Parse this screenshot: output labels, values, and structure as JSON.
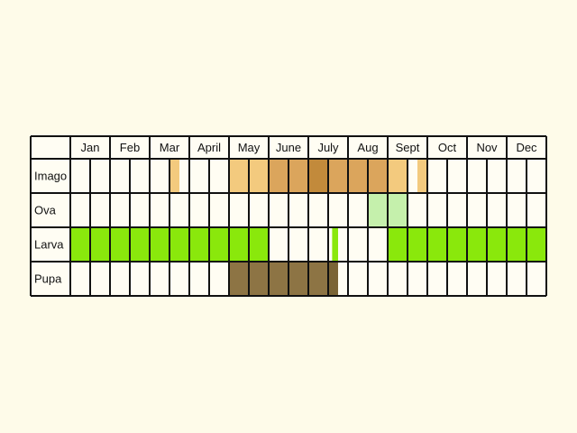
{
  "months": [
    "Jan",
    "Feb",
    "Mar",
    "April",
    "May",
    "June",
    "July",
    "Aug",
    "Sept",
    "Oct",
    "Nov",
    "Dec"
  ],
  "colors": {
    "background": "#fefbe9",
    "cell": "#fffdf3",
    "grid": "#111111",
    "imago_light": "#f3ca7e",
    "imago_mid": "#dba55c",
    "imago_dark": "#c28a3b",
    "ova": "#c5f0ac",
    "larva": "#8ae80c",
    "pupa": "#8d7444",
    "pupa_dark": "#7a6435"
  },
  "rows": [
    {
      "label": "Imago",
      "periods": [
        {
          "month": 3,
          "from": 0.5,
          "to": 0.75,
          "shade": "imago_light"
        },
        {
          "month": 5,
          "from": 0.0,
          "to": 1.0,
          "shade": "imago_light"
        },
        {
          "month": 6,
          "from": 0.0,
          "to": 1.0,
          "shade": "imago_mid"
        },
        {
          "month": 7,
          "from": 0.0,
          "to": 0.5,
          "shade": "imago_dark"
        },
        {
          "month": 7,
          "from": 0.5,
          "to": 1.0,
          "shade": "imago_mid"
        },
        {
          "month": 8,
          "from": 0.0,
          "to": 1.0,
          "shade": "imago_mid"
        },
        {
          "month": 9,
          "from": 0.0,
          "to": 0.5,
          "shade": "imago_light"
        },
        {
          "month": 9,
          "from": 0.75,
          "to": 1.0,
          "shade": "imago_light"
        }
      ]
    },
    {
      "label": "Ova",
      "periods": [
        {
          "month": 8,
          "from": 0.5,
          "to": 1.0,
          "shade": "ova"
        },
        {
          "month": 9,
          "from": 0.0,
          "to": 0.5,
          "shade": "ova"
        }
      ]
    },
    {
      "label": "Larva",
      "periods": [
        {
          "month": 1,
          "from": 0.0,
          "to": 1.0,
          "shade": "larva"
        },
        {
          "month": 2,
          "from": 0.0,
          "to": 1.0,
          "shade": "larva"
        },
        {
          "month": 3,
          "from": 0.0,
          "to": 1.0,
          "shade": "larva"
        },
        {
          "month": 4,
          "from": 0.0,
          "to": 1.0,
          "shade": "larva"
        },
        {
          "month": 5,
          "from": 0.0,
          "to": 1.0,
          "shade": "larva"
        },
        {
          "month": 7,
          "from": 0.6,
          "to": 0.75,
          "shade": "larva"
        },
        {
          "month": 9,
          "from": 0.0,
          "to": 1.0,
          "shade": "larva"
        },
        {
          "month": 10,
          "from": 0.0,
          "to": 1.0,
          "shade": "larva"
        },
        {
          "month": 11,
          "from": 0.0,
          "to": 1.0,
          "shade": "larva"
        },
        {
          "month": 12,
          "from": 0.0,
          "to": 1.0,
          "shade": "larva"
        }
      ]
    },
    {
      "label": "Pupa",
      "periods": [
        {
          "month": 5,
          "from": 0.0,
          "to": 1.0,
          "shade": "pupa"
        },
        {
          "month": 6,
          "from": 0.0,
          "to": 1.0,
          "shade": "pupa"
        },
        {
          "month": 7,
          "from": 0.0,
          "to": 0.5,
          "shade": "pupa"
        },
        {
          "month": 7,
          "from": 0.5,
          "to": 0.75,
          "shade": "pupa_dark"
        }
      ]
    }
  ]
}
